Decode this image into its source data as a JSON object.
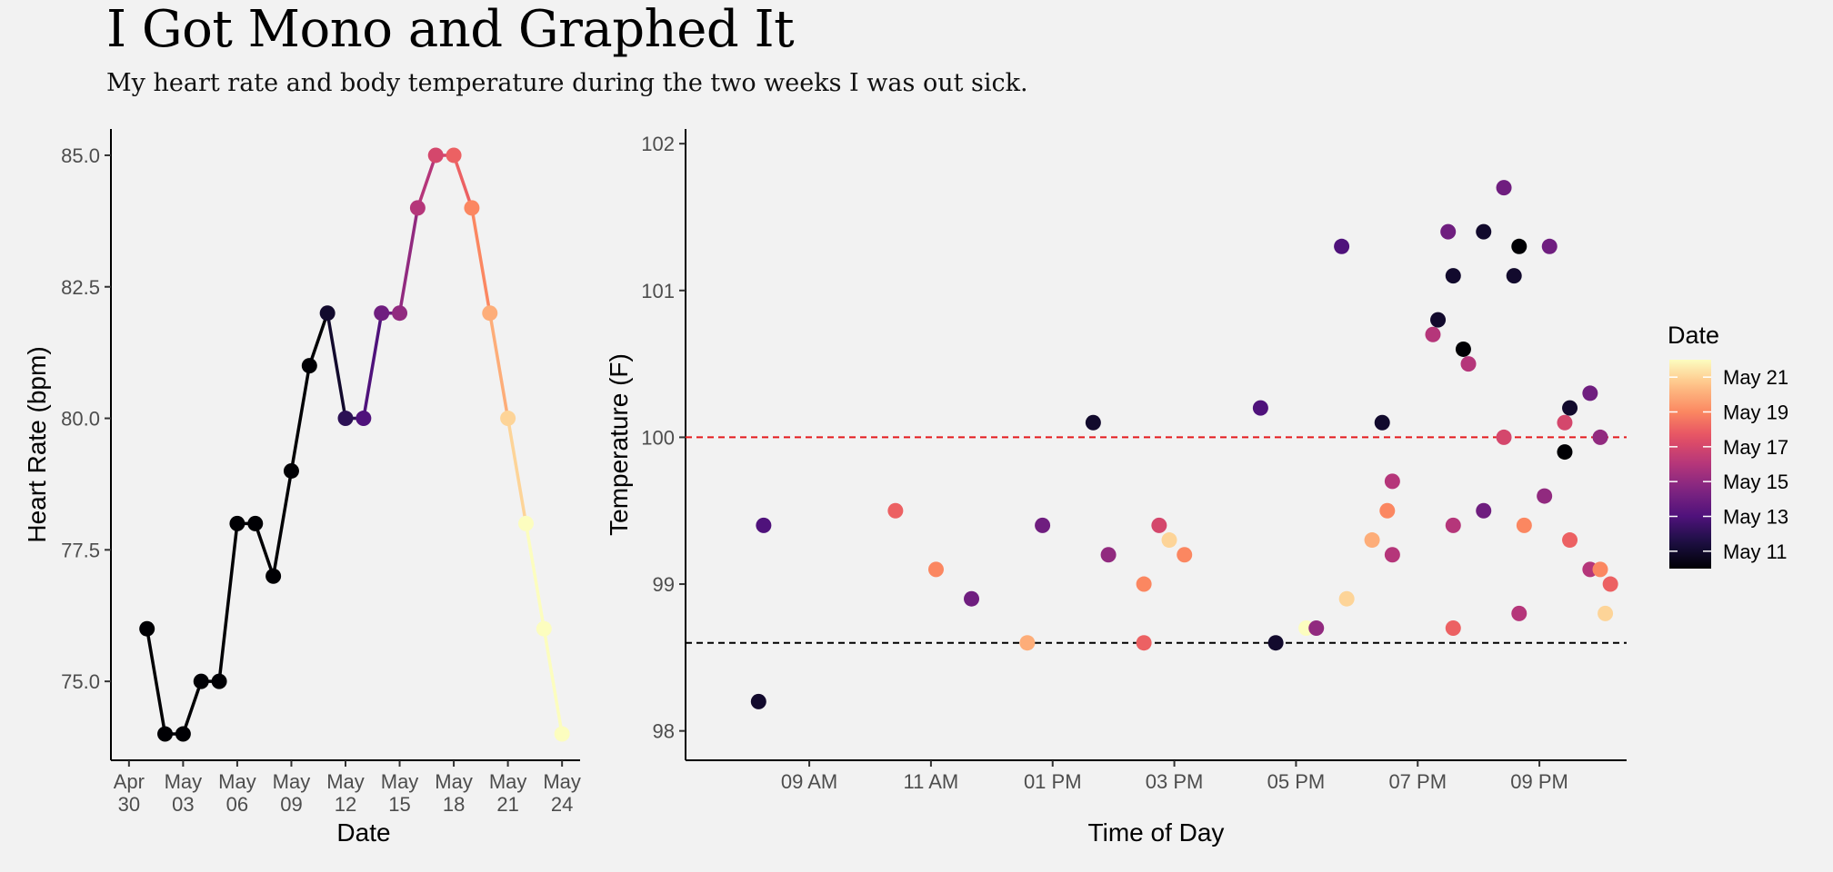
{
  "title": "I Got Mono and Graphed It",
  "subtitle": "My heart rate and body temperature during the two weeks I was out sick.",
  "colors": {
    "background": "#f2f2f2",
    "fever_threshold_line": "#e41a1c",
    "normal_temp_line": "#000000",
    "colormap": "magma"
  },
  "chart_data": [
    {
      "type": "line",
      "xlabel": "Date",
      "ylabel": "Heart Rate (bpm)",
      "x_tick_labels": [
        [
          "Apr",
          "30"
        ],
        [
          "May",
          "03"
        ],
        [
          "May",
          "06"
        ],
        [
          "May",
          "09"
        ],
        [
          "May",
          "12"
        ],
        [
          "May",
          "15"
        ],
        [
          "May",
          "18"
        ],
        [
          "May",
          "21"
        ],
        [
          "May",
          "24"
        ]
      ],
      "x_ticks": [
        "2016-04-30",
        "2016-05-03",
        "2016-05-06",
        "2016-05-09",
        "2016-05-12",
        "2016-05-15",
        "2016-05-18",
        "2016-05-21",
        "2016-05-24"
      ],
      "y_tick_labels": [
        "75.0",
        "77.5",
        "80.0",
        "82.5",
        "85.0"
      ],
      "y_ticks": [
        75.0,
        77.5,
        80.0,
        82.5,
        85.0
      ],
      "xlim": [
        "2016-04-29",
        "2016-05-25"
      ],
      "ylim": [
        73.5,
        85.5
      ],
      "grid": false,
      "x": [
        "2016-05-01",
        "2016-05-02",
        "2016-05-03",
        "2016-05-04",
        "2016-05-05",
        "2016-05-06",
        "2016-05-07",
        "2016-05-08",
        "2016-05-09",
        "2016-05-10",
        "2016-05-11",
        "2016-05-12",
        "2016-05-13",
        "2016-05-14",
        "2016-05-15",
        "2016-05-16",
        "2016-05-17",
        "2016-05-18",
        "2016-05-19",
        "2016-05-20",
        "2016-05-21",
        "2016-05-22",
        "2016-05-23",
        "2016-05-24"
      ],
      "y": [
        76,
        74,
        74,
        75,
        75,
        78,
        78,
        77,
        79,
        81,
        82,
        80,
        80,
        82,
        82,
        84,
        85,
        85,
        84,
        82,
        80,
        78,
        76,
        74
      ]
    },
    {
      "type": "scatter",
      "xlabel": "Time of Day",
      "ylabel": "Temperature (F)",
      "x_tick_labels": [
        "09 AM",
        "11 AM",
        "01 PM",
        "03 PM",
        "05 PM",
        "07 PM",
        "09 PM"
      ],
      "x_ticks": [
        "09:00",
        "11:00",
        "13:00",
        "15:00",
        "17:00",
        "19:00",
        "21:00"
      ],
      "y_tick_labels": [
        "98",
        "99",
        "100",
        "101",
        "102"
      ],
      "y_ticks": [
        98,
        99,
        100,
        101,
        102
      ],
      "xlim": [
        "06:58",
        "22:26"
      ],
      "ylim": [
        97.8,
        102.1
      ],
      "grid": false,
      "reference_lines": [
        {
          "y": 100.0,
          "style": "dashed",
          "color": "#e41a1c"
        },
        {
          "y": 98.6,
          "style": "dashed",
          "color": "#000000"
        }
      ],
      "color_by": "Date",
      "points": [
        {
          "time": "08:10",
          "temp": 98.2,
          "date": "2016-05-11"
        },
        {
          "time": "08:15",
          "temp": 99.4,
          "date": "2016-05-13"
        },
        {
          "time": "10:25",
          "temp": 99.5,
          "date": "2016-05-18"
        },
        {
          "time": "11:05",
          "temp": 99.1,
          "date": "2016-05-19"
        },
        {
          "time": "11:40",
          "temp": 98.9,
          "date": "2016-05-14"
        },
        {
          "time": "12:35",
          "temp": 98.6,
          "date": "2016-05-20"
        },
        {
          "time": "12:50",
          "temp": 99.4,
          "date": "2016-05-14"
        },
        {
          "time": "13:40",
          "temp": 100.1,
          "date": "2016-05-11"
        },
        {
          "time": "13:55",
          "temp": 99.2,
          "date": "2016-05-15"
        },
        {
          "time": "14:30",
          "temp": 99.0,
          "date": "2016-05-19"
        },
        {
          "time": "14:30",
          "temp": 98.6,
          "date": "2016-05-18"
        },
        {
          "time": "14:45",
          "temp": 99.4,
          "date": "2016-05-17"
        },
        {
          "time": "14:55",
          "temp": 99.3,
          "date": "2016-05-21"
        },
        {
          "time": "15:10",
          "temp": 99.2,
          "date": "2016-05-19"
        },
        {
          "time": "16:25",
          "temp": 100.2,
          "date": "2016-05-13"
        },
        {
          "time": "16:40",
          "temp": 98.6,
          "date": "2016-05-11"
        },
        {
          "time": "17:10",
          "temp": 98.7,
          "date": "2016-05-22"
        },
        {
          "time": "17:20",
          "temp": 98.7,
          "date": "2016-05-15"
        },
        {
          "time": "17:45",
          "temp": 101.3,
          "date": "2016-05-13"
        },
        {
          "time": "17:50",
          "temp": 98.9,
          "date": "2016-05-21"
        },
        {
          "time": "18:15",
          "temp": 99.3,
          "date": "2016-05-20"
        },
        {
          "time": "18:25",
          "temp": 100.1,
          "date": "2016-05-11"
        },
        {
          "time": "18:30",
          "temp": 99.5,
          "date": "2016-05-19"
        },
        {
          "time": "18:35",
          "temp": 99.7,
          "date": "2016-05-16"
        },
        {
          "time": "18:35",
          "temp": 99.2,
          "date": "2016-05-16"
        },
        {
          "time": "19:15",
          "temp": 100.7,
          "date": "2016-05-16"
        },
        {
          "time": "19:20",
          "temp": 100.8,
          "date": "2016-05-11"
        },
        {
          "time": "19:30",
          "temp": 101.4,
          "date": "2016-05-14"
        },
        {
          "time": "19:35",
          "temp": 98.7,
          "date": "2016-05-18"
        },
        {
          "time": "19:35",
          "temp": 101.1,
          "date": "2016-05-11"
        },
        {
          "time": "19:35",
          "temp": 99.4,
          "date": "2016-05-16"
        },
        {
          "time": "19:45",
          "temp": 100.6,
          "date": "2016-05-10"
        },
        {
          "time": "19:50",
          "temp": 100.5,
          "date": "2016-05-16"
        },
        {
          "time": "20:05",
          "temp": 99.5,
          "date": "2016-05-14"
        },
        {
          "time": "20:05",
          "temp": 101.4,
          "date": "2016-05-11"
        },
        {
          "time": "20:25",
          "temp": 100.0,
          "date": "2016-05-17"
        },
        {
          "time": "20:25",
          "temp": 101.7,
          "date": "2016-05-14"
        },
        {
          "time": "20:35",
          "temp": 101.1,
          "date": "2016-05-11"
        },
        {
          "time": "20:40",
          "temp": 101.3,
          "date": "2016-05-10"
        },
        {
          "time": "20:40",
          "temp": 98.8,
          "date": "2016-05-16"
        },
        {
          "time": "20:45",
          "temp": 99.4,
          "date": "2016-05-19"
        },
        {
          "time": "21:05",
          "temp": 99.6,
          "date": "2016-05-15"
        },
        {
          "time": "21:10",
          "temp": 101.3,
          "date": "2016-05-14"
        },
        {
          "time": "21:25",
          "temp": 99.9,
          "date": "2016-05-10"
        },
        {
          "time": "21:25",
          "temp": 100.1,
          "date": "2016-05-17"
        },
        {
          "time": "21:30",
          "temp": 100.2,
          "date": "2016-05-11"
        },
        {
          "time": "21:30",
          "temp": 99.3,
          "date": "2016-05-18"
        },
        {
          "time": "21:50",
          "temp": 99.1,
          "date": "2016-05-16"
        },
        {
          "time": "21:50",
          "temp": 100.3,
          "date": "2016-05-14"
        },
        {
          "time": "22:00",
          "temp": 100.0,
          "date": "2016-05-15"
        },
        {
          "time": "22:00",
          "temp": 99.1,
          "date": "2016-05-19"
        },
        {
          "time": "22:05",
          "temp": 98.8,
          "date": "2016-05-21"
        },
        {
          "time": "22:10",
          "temp": 99.0,
          "date": "2016-05-18"
        }
      ],
      "legend": {
        "title": "Date",
        "placement": "right",
        "labels": [
          "May 21",
          "May 19",
          "May 17",
          "May 15",
          "May 13",
          "May 11"
        ],
        "values": [
          "2016-05-21",
          "2016-05-19",
          "2016-05-17",
          "2016-05-15",
          "2016-05-13",
          "2016-05-11"
        ],
        "range": [
          "2016-05-10",
          "2016-05-22"
        ]
      }
    }
  ]
}
